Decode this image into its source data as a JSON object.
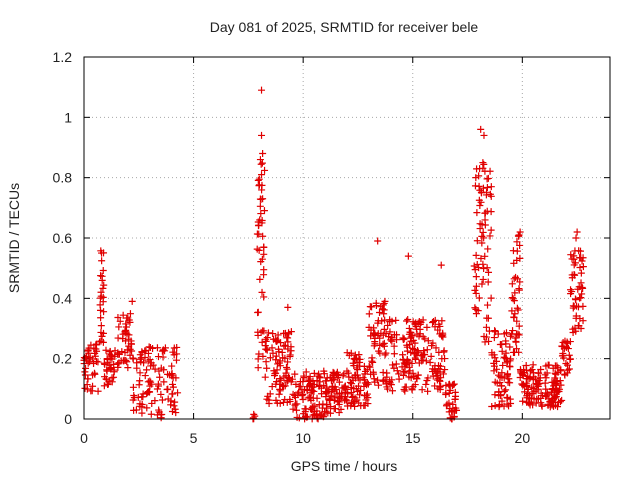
{
  "chart_data": {
    "type": "scatter",
    "title": "Day 081 of 2025, SRMTID for receiver bele",
    "xlabel": "GPS time / hours",
    "ylabel": "SRMTID / TECUs",
    "xlim": [
      0,
      24
    ],
    "ylim": [
      0,
      1.2
    ],
    "xticks": [
      0,
      5,
      10,
      15,
      20
    ],
    "xtick_labels": [
      "0",
      "5",
      "10",
      "15",
      "20"
    ],
    "yticks": [
      0,
      0.2,
      0.4,
      0.6,
      0.8,
      1.0,
      1.2
    ],
    "ytick_labels": [
      "0",
      "0.2",
      "0.4",
      "0.6",
      "0.8",
      "1",
      "1.2"
    ],
    "grid": true,
    "marker": "+",
    "series": [
      {
        "name": "SRMTID",
        "color": "#e00000",
        "segments": [
          {
            "x0": 0.0,
            "x1": 0.7,
            "base": 0.17,
            "spread": 0.08,
            "n": 40
          },
          {
            "x0": 0.7,
            "x1": 0.9,
            "base": 0.38,
            "spread": 0.18,
            "n": 25
          },
          {
            "x0": 0.9,
            "x1": 1.5,
            "base": 0.17,
            "spread": 0.06,
            "n": 35
          },
          {
            "x0": 1.5,
            "x1": 2.2,
            "base": 0.26,
            "spread": 0.09,
            "n": 45
          },
          {
            "x0": 2.2,
            "x1": 4.3,
            "base": 0.12,
            "spread": 0.12,
            "n": 110
          },
          {
            "x0": 7.7,
            "x1": 7.9,
            "base": 0.0,
            "spread": 0.005,
            "n": 5
          },
          {
            "x0": 7.9,
            "x1": 8.25,
            "base": 0.52,
            "spread": 0.35,
            "n": 45
          },
          {
            "x0": 8.25,
            "x1": 9.5,
            "base": 0.17,
            "spread": 0.12,
            "n": 90
          },
          {
            "x0": 9.5,
            "x1": 12.0,
            "base": 0.08,
            "spread": 0.08,
            "n": 170
          },
          {
            "x0": 12.0,
            "x1": 13.0,
            "base": 0.13,
            "spread": 0.09,
            "n": 70
          },
          {
            "x0": 13.0,
            "x1": 13.8,
            "base": 0.25,
            "spread": 0.14,
            "n": 60
          },
          {
            "x0": 13.8,
            "x1": 16.5,
            "base": 0.21,
            "spread": 0.12,
            "n": 180
          },
          {
            "x0": 16.5,
            "x1": 17.0,
            "base": 0.06,
            "spread": 0.06,
            "n": 35
          },
          {
            "x0": 17.8,
            "x1": 18.6,
            "base": 0.55,
            "spread": 0.3,
            "n": 75
          },
          {
            "x0": 18.6,
            "x1": 19.5,
            "base": 0.17,
            "spread": 0.13,
            "n": 70
          },
          {
            "x0": 19.5,
            "x1": 19.9,
            "base": 0.42,
            "spread": 0.2,
            "n": 40
          },
          {
            "x0": 19.9,
            "x1": 21.8,
            "base": 0.11,
            "spread": 0.07,
            "n": 140
          },
          {
            "x0": 21.8,
            "x1": 22.2,
            "base": 0.2,
            "spread": 0.06,
            "n": 25
          },
          {
            "x0": 22.2,
            "x1": 22.8,
            "base": 0.42,
            "spread": 0.14,
            "n": 50
          }
        ],
        "highlights": [
          {
            "x": 8.1,
            "y": 1.09
          },
          {
            "x": 8.1,
            "y": 0.94
          },
          {
            "x": 8.05,
            "y": 0.86
          },
          {
            "x": 8.15,
            "y": 0.88
          },
          {
            "x": 8.1,
            "y": 0.81
          },
          {
            "x": 8.15,
            "y": 0.73
          },
          {
            "x": 8.12,
            "y": 0.65
          },
          {
            "x": 8.2,
            "y": 0.57
          },
          {
            "x": 18.1,
            "y": 0.96
          },
          {
            "x": 18.25,
            "y": 0.94
          },
          {
            "x": 18.2,
            "y": 0.85
          },
          {
            "x": 18.05,
            "y": 0.83
          },
          {
            "x": 13.4,
            "y": 0.59
          },
          {
            "x": 14.8,
            "y": 0.54
          },
          {
            "x": 16.3,
            "y": 0.51
          },
          {
            "x": 0.8,
            "y": 0.55
          },
          {
            "x": 22.5,
            "y": 0.62
          },
          {
            "x": 22.45,
            "y": 0.6
          },
          {
            "x": 19.9,
            "y": 0.62
          },
          {
            "x": 19.85,
            "y": 0.61
          },
          {
            "x": 2.2,
            "y": 0.39
          },
          {
            "x": 9.3,
            "y": 0.37
          }
        ]
      }
    ]
  }
}
